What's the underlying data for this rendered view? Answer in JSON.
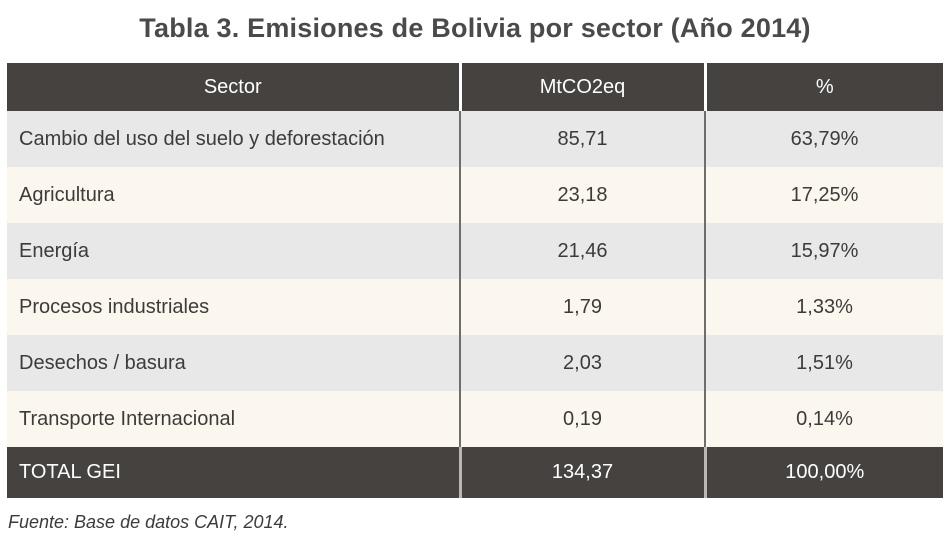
{
  "title": "Tabla 3. Emisiones de Bolivia por sector (Año 2014)",
  "source_note": "Fuente: Base de datos CAIT, 2014.",
  "colors": {
    "header_bg": "#454240",
    "row_gray": "#e7e8e7",
    "row_cream": "#fbf6ee",
    "divider_body": "#6f6d6b",
    "header_text": "#ffffff",
    "body_text": "#3d3b3a",
    "title_text": "#4a4a4a"
  },
  "chart_data": {
    "type": "table",
    "title": "Tabla 3. Emisiones de Bolivia por sector (Año 2014)",
    "columns": [
      "Sector",
      "MtCO2eq",
      "%"
    ],
    "rows": [
      {
        "sector": "Cambio del uso del suelo y deforestación",
        "mtco2eq": "85,71",
        "pct": "63,79%"
      },
      {
        "sector": "Agricultura",
        "mtco2eq": "23,18",
        "pct": "17,25%"
      },
      {
        "sector": "Energía",
        "mtco2eq": "21,46",
        "pct": "15,97%"
      },
      {
        "sector": "Procesos industriales",
        "mtco2eq": "1,79",
        "pct": "1,33%"
      },
      {
        "sector": "Desechos / basura",
        "mtco2eq": "2,03",
        "pct": "1,51%"
      },
      {
        "sector": "Transporte Internacional",
        "mtco2eq": "0,19",
        "pct": "0,14%"
      }
    ],
    "total": {
      "sector": "TOTAL GEI",
      "mtco2eq": "134,37",
      "pct": "100,00%"
    }
  }
}
